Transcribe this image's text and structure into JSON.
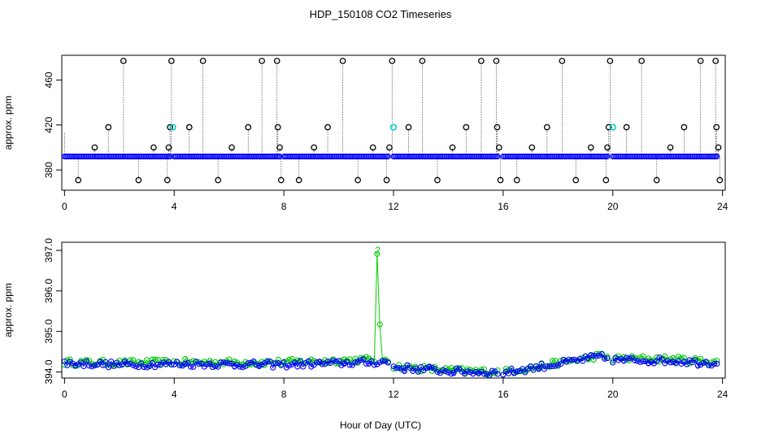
{
  "chart_data": {
    "title": "HDP_150108  CO2 Timeseries",
    "xlabel": "Hour of Day (UTC)",
    "type": "scatter",
    "panels": [
      {
        "name": "top-panel",
        "ylabel": "approx. ppm",
        "xlim": [
          -0.1,
          24.1
        ],
        "ylim": [
          362,
          482
        ],
        "xticks": [
          0,
          4,
          8,
          12,
          16,
          20,
          24
        ],
        "yticks": [
          380,
          420,
          460
        ],
        "baseline": {
          "value": 392,
          "segments": [
            [
              0.0,
              3.9
            ],
            [
              4.0,
              7.9
            ],
            [
              8.0,
              11.8
            ],
            [
              12.0,
              15.8
            ],
            [
              16.0,
              19.8
            ],
            [
              20.0,
              23.8
            ]
          ],
          "step": 0.055,
          "color": "#0000ff"
        },
        "spikes": {
          "color": "#000000",
          "points": [
            {
              "x": 0.5,
              "y": 371
            },
            {
              "x": 1.1,
              "y": 400
            },
            {
              "x": 1.6,
              "y": 418
            },
            {
              "x": 2.15,
              "y": 477
            },
            {
              "x": 2.7,
              "y": 371
            },
            {
              "x": 3.25,
              "y": 400
            },
            {
              "x": 3.75,
              "y": 371
            },
            {
              "x": 3.8,
              "y": 400
            },
            {
              "x": 3.85,
              "y": 418
            },
            {
              "x": 3.9,
              "y": 477
            },
            {
              "x": 4.55,
              "y": 418
            },
            {
              "x": 5.05,
              "y": 477
            },
            {
              "x": 5.6,
              "y": 371
            },
            {
              "x": 6.1,
              "y": 400
            },
            {
              "x": 6.7,
              "y": 418
            },
            {
              "x": 7.2,
              "y": 477
            },
            {
              "x": 7.75,
              "y": 477
            },
            {
              "x": 7.78,
              "y": 418
            },
            {
              "x": 7.85,
              "y": 400
            },
            {
              "x": 7.9,
              "y": 371
            },
            {
              "x": 8.55,
              "y": 371
            },
            {
              "x": 9.1,
              "y": 400
            },
            {
              "x": 9.6,
              "y": 418
            },
            {
              "x": 10.15,
              "y": 477
            },
            {
              "x": 10.7,
              "y": 371
            },
            {
              "x": 11.25,
              "y": 400
            },
            {
              "x": 11.75,
              "y": 371
            },
            {
              "x": 11.85,
              "y": 400
            },
            {
              "x": 11.95,
              "y": 477
            },
            {
              "x": 12.55,
              "y": 418
            },
            {
              "x": 13.05,
              "y": 477
            },
            {
              "x": 13.6,
              "y": 371
            },
            {
              "x": 14.15,
              "y": 400
            },
            {
              "x": 14.65,
              "y": 418
            },
            {
              "x": 15.2,
              "y": 477
            },
            {
              "x": 15.75,
              "y": 477
            },
            {
              "x": 15.78,
              "y": 418
            },
            {
              "x": 15.85,
              "y": 400
            },
            {
              "x": 15.9,
              "y": 371
            },
            {
              "x": 16.5,
              "y": 371
            },
            {
              "x": 17.05,
              "y": 400
            },
            {
              "x": 17.6,
              "y": 418
            },
            {
              "x": 18.15,
              "y": 477
            },
            {
              "x": 18.65,
              "y": 371
            },
            {
              "x": 19.2,
              "y": 400
            },
            {
              "x": 19.75,
              "y": 371
            },
            {
              "x": 19.8,
              "y": 400
            },
            {
              "x": 19.85,
              "y": 418
            },
            {
              "x": 19.9,
              "y": 477
            },
            {
              "x": 20.5,
              "y": 418
            },
            {
              "x": 21.05,
              "y": 477
            },
            {
              "x": 21.6,
              "y": 371
            },
            {
              "x": 22.1,
              "y": 400
            },
            {
              "x": 22.6,
              "y": 418
            },
            {
              "x": 23.2,
              "y": 477
            },
            {
              "x": 23.75,
              "y": 477
            },
            {
              "x": 23.78,
              "y": 418
            },
            {
              "x": 23.85,
              "y": 400
            },
            {
              "x": 23.9,
              "y": 371
            }
          ]
        },
        "highlights": {
          "color": "#00cccc",
          "points": [
            {
              "x": 3.95,
              "y": 418
            },
            {
              "x": 12.0,
              "y": 418
            },
            {
              "x": 20.0,
              "y": 418
            }
          ]
        }
      },
      {
        "name": "bottom-panel",
        "ylabel": "approx. ppm",
        "xlim": [
          -0.1,
          24.1
        ],
        "ylim": [
          393.85,
          397.2
        ],
        "xticks": [
          0,
          4,
          8,
          12,
          16,
          20,
          24
        ],
        "yticks": [
          394.0,
          395.0,
          396.0,
          397.0
        ],
        "segments": [
          [
            0.0,
            3.9
          ],
          [
            4.0,
            7.9
          ],
          [
            8.0,
            11.8
          ],
          [
            12.0,
            15.8
          ],
          [
            16.0,
            19.8
          ],
          [
            20.0,
            23.8
          ]
        ],
        "step": 0.1,
        "series": [
          {
            "name": "3",
            "marker": "3",
            "color": "#0000ff",
            "trend": [
              {
                "x": 0,
                "y": 394.22
              },
              {
                "x": 2,
                "y": 394.18
              },
              {
                "x": 4,
                "y": 394.2
              },
              {
                "x": 8,
                "y": 394.18
              },
              {
                "x": 11.8,
                "y": 394.25
              },
              {
                "x": 12,
                "y": 394.12
              },
              {
                "x": 14,
                "y": 394.02
              },
              {
                "x": 16,
                "y": 393.98
              },
              {
                "x": 18,
                "y": 394.2
              },
              {
                "x": 19.5,
                "y": 394.38
              },
              {
                "x": 20,
                "y": 394.3
              },
              {
                "x": 22,
                "y": 394.28
              },
              {
                "x": 23.8,
                "y": 394.22
              }
            ]
          },
          {
            "name": "2",
            "marker": "2",
            "color": "#00cc00",
            "peak": {
              "x_from": 11.35,
              "x_to": 11.5,
              "max": 397.0
            },
            "trend": [
              {
                "x": 0,
                "y": 394.24
              },
              {
                "x": 2,
                "y": 394.22
              },
              {
                "x": 4,
                "y": 394.24
              },
              {
                "x": 8,
                "y": 394.24
              },
              {
                "x": 11.8,
                "y": 394.32
              },
              {
                "x": 12,
                "y": 394.14
              },
              {
                "x": 14,
                "y": 394.04
              },
              {
                "x": 16,
                "y": 394.0
              },
              {
                "x": 18,
                "y": 394.22
              },
              {
                "x": 19.5,
                "y": 394.4
              },
              {
                "x": 20,
                "y": 394.33
              },
              {
                "x": 22,
                "y": 394.32
              },
              {
                "x": 23.8,
                "y": 394.25
              }
            ]
          }
        ]
      }
    ]
  }
}
